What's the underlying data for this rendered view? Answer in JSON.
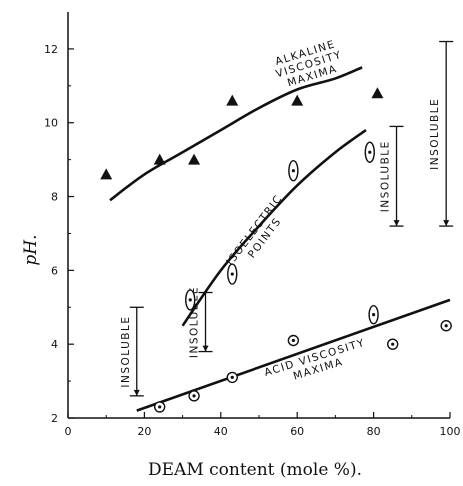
{
  "chart_data": {
    "type": "scatter",
    "title": "",
    "xlabel": "DEAM content (mole %).",
    "ylabel": "pH.",
    "xlim": [
      0,
      100
    ],
    "ylim": [
      2,
      13
    ],
    "xticks": [
      "0",
      "20",
      "40",
      "60",
      "80",
      "100"
    ],
    "yticks": [
      "2",
      "4",
      "6",
      "8",
      "10",
      "12"
    ],
    "grid": false,
    "series": [
      {
        "marker": "filled-triangle",
        "points": [
          [
            10,
            8.6
          ],
          [
            24,
            9.0
          ],
          [
            33,
            9.0
          ],
          [
            43,
            10.6
          ],
          [
            60,
            10.6
          ],
          [
            81,
            10.8
          ]
        ]
      },
      {
        "marker": "open-ellipse-dot",
        "points": [
          [
            32,
            5.2
          ],
          [
            43,
            5.9
          ],
          [
            59,
            8.7
          ],
          [
            79,
            9.2
          ]
        ]
      },
      {
        "marker": "open-circle-dot",
        "points": [
          [
            24,
            2.3
          ],
          [
            33,
            2.6
          ],
          [
            43,
            3.1
          ],
          [
            59,
            4.1
          ],
          [
            80,
            4.8
          ],
          [
            85,
            4.0
          ],
          [
            99,
            4.5
          ]
        ]
      }
    ],
    "curves": [
      {
        "points": [
          [
            11,
            7.9
          ],
          [
            20,
            8.6
          ],
          [
            30,
            9.2
          ],
          [
            40,
            9.8
          ],
          [
            50,
            10.4
          ],
          [
            60,
            10.9
          ],
          [
            70,
            11.2
          ],
          [
            77,
            11.5
          ]
        ]
      },
      {
        "points": [
          [
            30,
            4.5
          ],
          [
            40,
            6.0
          ],
          [
            50,
            7.2
          ],
          [
            60,
            8.3
          ],
          [
            70,
            9.2
          ],
          [
            78,
            9.8
          ]
        ]
      },
      {
        "points": [
          [
            18,
            2.2
          ],
          [
            100,
            5.2
          ]
        ]
      }
    ],
    "ranges": [
      {
        "x": 18,
        "low": 2.6,
        "high": 5.0,
        "label": "INSOLUBLE"
      },
      {
        "x": 36,
        "low": 3.8,
        "high": 5.4,
        "label": "INSOLUBLE"
      },
      {
        "x": 86,
        "low": 7.2,
        "high": 9.9,
        "label": "INSOLUBLE"
      },
      {
        "x": 99,
        "low": 7.2,
        "high": 12.2,
        "label": "INSOLUBLE"
      }
    ],
    "annotations": [
      {
        "lines": [
          "ALKALINE",
          "VISCOSITY",
          "MAXIMA"
        ]
      },
      {
        "lines": [
          "ISOELECTRIC",
          "POINTS"
        ]
      },
      {
        "lines": [
          "ACID VISCOSITY",
          "MAXIMA"
        ]
      }
    ]
  }
}
